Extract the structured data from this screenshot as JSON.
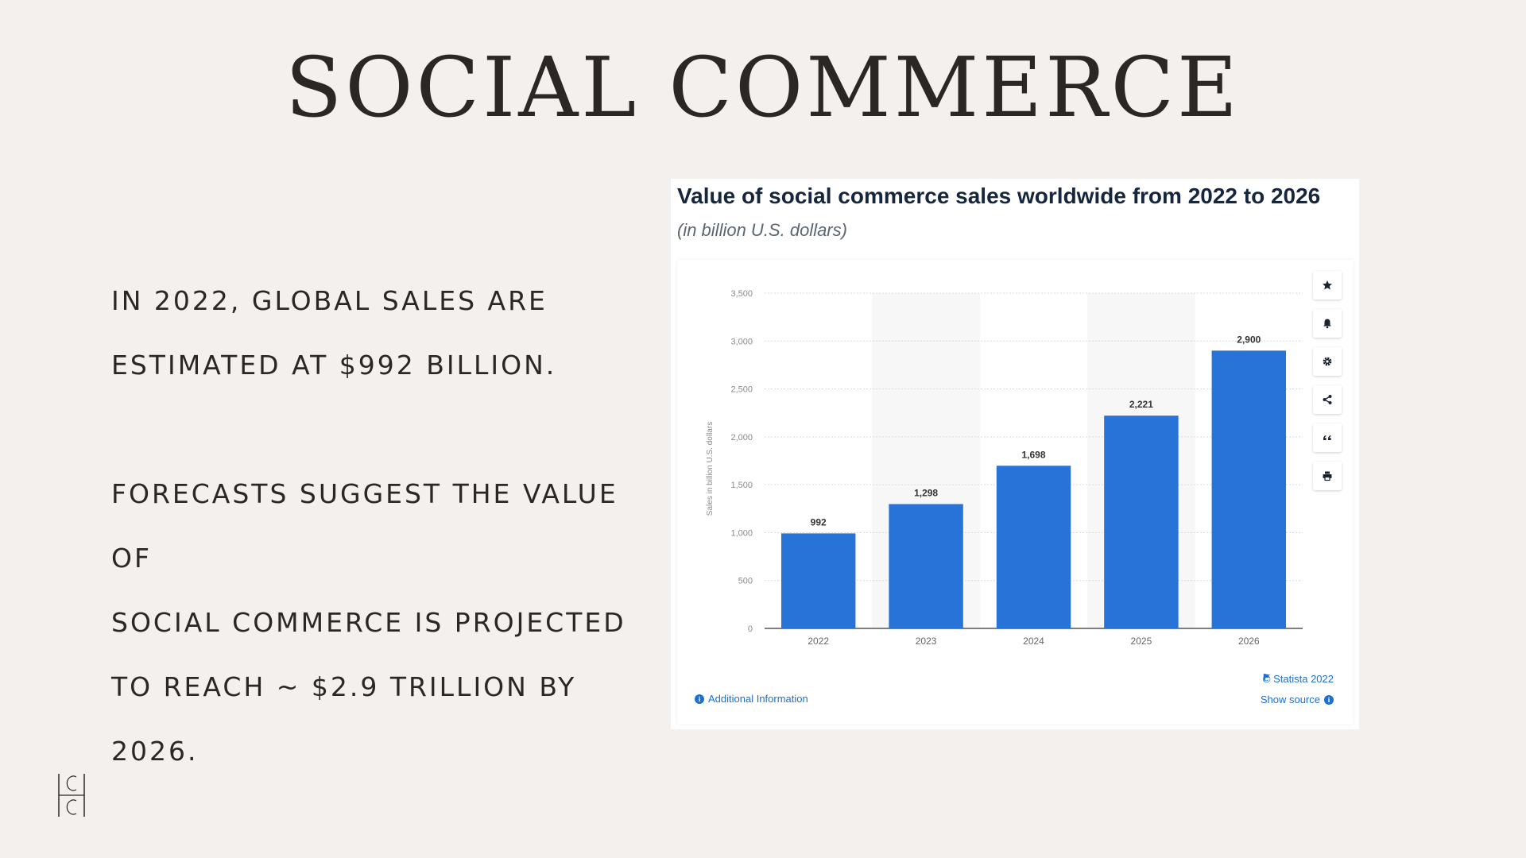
{
  "slide": {
    "title": "SOCIAL COMMERCE",
    "paragraph1": [
      "IN 2022, GLOBAL SALES ARE",
      "ESTIMATED AT $992 BILLION."
    ],
    "paragraph2": [
      "FORECASTS SUGGEST THE VALUE OF",
      "SOCIAL COMMERCE IS PROJECTED",
      "TO REACH ~ $2.9 TRILLION BY 2026."
    ],
    "logo_letters": "CC",
    "background_color": "#f3f0ed"
  },
  "chart_data": {
    "type": "bar",
    "title": "Value of social commerce sales worldwide from 2022 to 2026",
    "subtitle": "(in billion U.S. dollars)",
    "ylabel": "Sales in billion U.S. dollars",
    "xlabel": "",
    "categories": [
      "2022",
      "2023",
      "2024",
      "2025",
      "2026"
    ],
    "values": [
      992,
      1298,
      1698,
      2221,
      2900
    ],
    "data_labels": [
      "992",
      "1,298",
      "1,698",
      "2,221",
      "2,900"
    ],
    "ylim": [
      0,
      3500
    ],
    "yticks": [
      0,
      500,
      1000,
      1500,
      2000,
      2500,
      3000,
      3500
    ],
    "ytick_labels": [
      "0",
      "500",
      "1,000",
      "1,500",
      "2,000",
      "2,500",
      "3,000",
      "3,500"
    ],
    "grid": true,
    "bar_color": "#2873d8",
    "shaded_columns": [
      "2023",
      "2025"
    ]
  },
  "toolbar": {
    "icons": [
      "star-icon",
      "bell-icon",
      "gear-icon",
      "share-icon",
      "quote-icon",
      "print-icon"
    ]
  },
  "footer": {
    "additional_info": "Additional Information",
    "copyright": "© Statista 2022",
    "show_source": "Show source",
    "link_color": "#1e6fd0"
  }
}
